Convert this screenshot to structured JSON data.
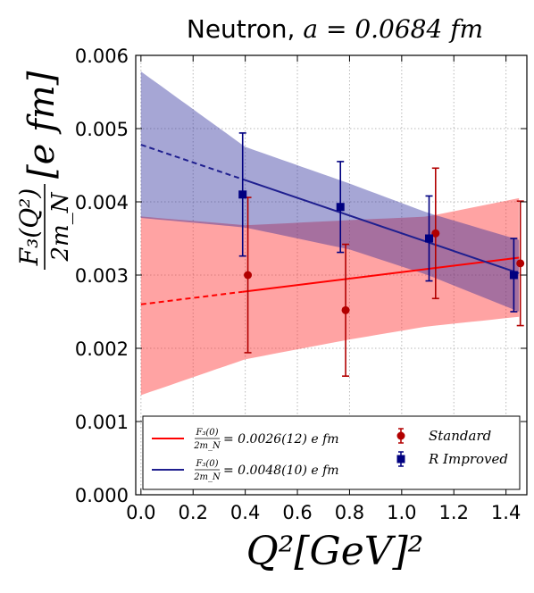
{
  "chart_data": {
    "type": "line",
    "title_text": "Neutron, ",
    "title_math": "a = 0.0684 fm",
    "xlabel": "Q²[GeV]²",
    "ylabel_num": "F₃(Q²)",
    "ylabel_den": "2m_N",
    "ylabel_unit": "[e fm]",
    "xlim": [
      -0.02,
      1.48
    ],
    "ylim": [
      0.0,
      0.006
    ],
    "xticks": [
      "0.0",
      "0.2",
      "0.4",
      "0.6",
      "0.8",
      "1.0",
      "1.2",
      "1.4"
    ],
    "xtick_values": [
      0.0,
      0.2,
      0.4,
      0.6,
      0.8,
      1.0,
      1.2,
      1.4
    ],
    "yticks": [
      "0.000",
      "0.001",
      "0.002",
      "0.003",
      "0.004",
      "0.005",
      "0.006"
    ],
    "ytick_values": [
      0.0,
      0.001,
      0.002,
      0.003,
      0.004,
      0.005,
      0.006
    ],
    "grid": true,
    "legend_placement": "bottom",
    "series": [
      {
        "name": "Standard",
        "color": "#ff0000",
        "marker_color": "#b20000",
        "marker": "circle",
        "points": [
          {
            "x": 0.41,
            "y": 0.003,
            "err": 0.00106
          },
          {
            "x": 0.785,
            "y": 0.00252,
            "err": 0.0009
          },
          {
            "x": 1.13,
            "y": 0.00357,
            "err": 0.00089
          },
          {
            "x": 1.455,
            "y": 0.00316,
            "err": 0.00085
          }
        ],
        "fit": {
          "intercept": 0.0026,
          "slope": 0.00044,
          "x_data_start": 0.39,
          "x_end": 1.45
        },
        "band_upper": [
          [
            0.0,
            0.0038
          ],
          [
            0.4,
            0.00368
          ],
          [
            0.8,
            0.00375
          ],
          [
            1.1,
            0.0038
          ],
          [
            1.45,
            0.00405
          ]
        ],
        "band_lower": [
          [
            0.0,
            0.00136
          ],
          [
            0.4,
            0.00185
          ],
          [
            0.8,
            0.00212
          ],
          [
            1.1,
            0.0023
          ],
          [
            1.45,
            0.00243
          ]
        ],
        "legend_label": "F₃(0)/2m_N = 0.0026(12) e fm"
      },
      {
        "name": "R Improved",
        "color": "#1f1f8f",
        "marker_color": "#000080",
        "marker": "square",
        "points": [
          {
            "x": 0.39,
            "y": 0.0041,
            "err": 0.00084
          },
          {
            "x": 0.765,
            "y": 0.00393,
            "err": 0.00062
          },
          {
            "x": 1.105,
            "y": 0.0035,
            "err": 0.00058
          },
          {
            "x": 1.43,
            "y": 0.003,
            "err": 0.0005
          }
        ],
        "fit": {
          "intercept": 0.00478,
          "slope": -0.00121,
          "x_data_start": 0.39,
          "x_end": 1.45
        },
        "band_upper": [
          [
            0.0,
            0.00578
          ],
          [
            0.4,
            0.00475
          ],
          [
            0.8,
            0.00425
          ],
          [
            1.1,
            0.00385
          ],
          [
            1.45,
            0.00348
          ]
        ],
        "band_lower": [
          [
            0.0,
            0.00378
          ],
          [
            0.4,
            0.00365
          ],
          [
            0.8,
            0.00335
          ],
          [
            1.1,
            0.003
          ],
          [
            1.45,
            0.0025
          ]
        ],
        "legend_label": "F₃(0)/2m_N = 0.0048(10) e fm"
      }
    ],
    "legend": {
      "line_entries": [
        {
          "frac_num": "F₃(0)",
          "frac_den": "2m_N",
          "value": "= 0.0026(12) e fm",
          "color": "#ff0000"
        },
        {
          "frac_num": "F₃(0)",
          "frac_den": "2m_N",
          "value": "= 0.0048(10) e fm",
          "color": "#1f1f8f"
        }
      ],
      "marker_entries": [
        {
          "label": "Standard",
          "color": "#b20000",
          "marker": "circle"
        },
        {
          "label": "R Improved",
          "color": "#000080",
          "marker": "square"
        }
      ]
    }
  }
}
